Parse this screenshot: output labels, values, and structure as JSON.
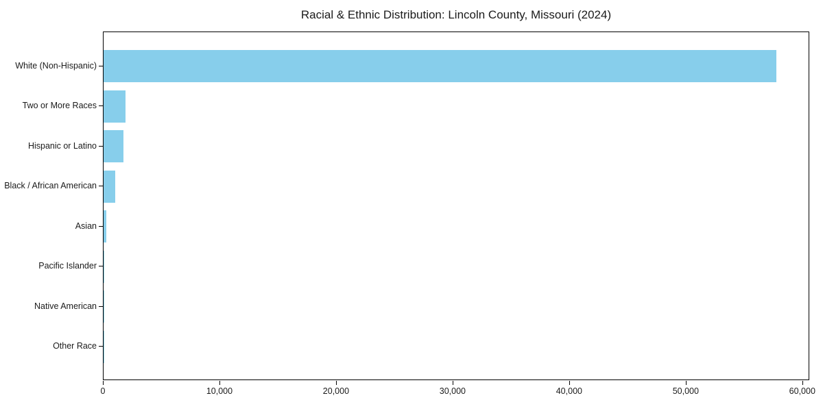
{
  "chart_data": {
    "type": "bar",
    "orientation": "horizontal",
    "title": "Racial & Ethnic Distribution: Lincoln County, Missouri (2024)",
    "xlabel": "",
    "ylabel": "",
    "categories": [
      "White (Non-Hispanic)",
      "Two or More Races",
      "Hispanic or Latino",
      "Black / African American",
      "Asian",
      "Pacific Islander",
      "Native American",
      "Other Race"
    ],
    "values": [
      57700,
      1900,
      1700,
      1000,
      230,
      60,
      40,
      20
    ],
    "xlim": [
      0,
      60600
    ],
    "x_ticks": [
      0,
      10000,
      20000,
      30000,
      40000,
      50000,
      60000
    ],
    "x_tick_labels": [
      "0",
      "10,000",
      "20,000",
      "30,000",
      "40,000",
      "50,000",
      "60,000"
    ],
    "bar_color": "#87CEEB",
    "spine_color": "#000000",
    "background_color": "#ffffff",
    "grid": false,
    "legend": "none"
  }
}
